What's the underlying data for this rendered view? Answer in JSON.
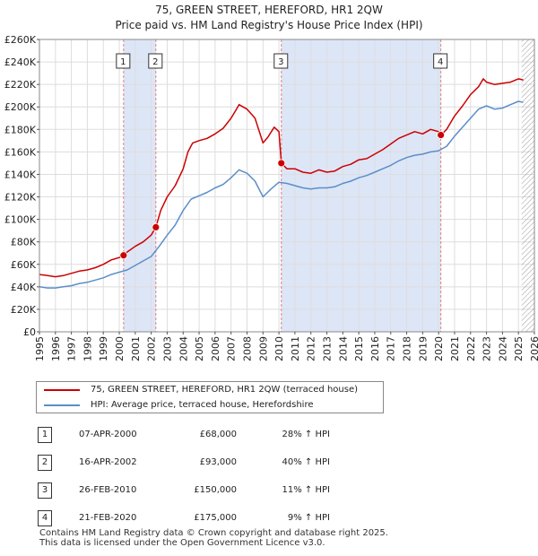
{
  "chart_data": {
    "type": "line",
    "title": "75, GREEN STREET, HEREFORD, HR1 2QW",
    "subtitle": "Price paid vs. HM Land Registry's House Price Index (HPI)",
    "xlim": [
      1995,
      2026
    ],
    "ylim": [
      0,
      260000
    ],
    "x_ticks": [
      1995,
      1996,
      1997,
      1998,
      1999,
      2000,
      2001,
      2002,
      2003,
      2004,
      2005,
      2006,
      2007,
      2008,
      2009,
      2010,
      2011,
      2012,
      2013,
      2014,
      2015,
      2016,
      2017,
      2018,
      2019,
      2020,
      2021,
      2022,
      2023,
      2024,
      2025,
      2026
    ],
    "y_ticks": [
      0,
      20000,
      40000,
      60000,
      80000,
      100000,
      120000,
      140000,
      160000,
      180000,
      200000,
      220000,
      240000,
      260000
    ],
    "y_tick_labels": [
      "£0",
      "£20K",
      "£40K",
      "£60K",
      "£80K",
      "£100K",
      "£120K",
      "£140K",
      "£160K",
      "£180K",
      "£200K",
      "£220K",
      "£240K",
      "£260K"
    ],
    "future_hatch_from": 2025.2,
    "series": [
      {
        "name": "75, GREEN STREET, HEREFORD, HR1 2QW (terraced house)",
        "color": "#cc0000",
        "points": [
          [
            1995.0,
            51000
          ],
          [
            1995.5,
            50000
          ],
          [
            1996.0,
            49000
          ],
          [
            1996.5,
            50000
          ],
          [
            1997.0,
            52000
          ],
          [
            1997.5,
            54000
          ],
          [
            1998.0,
            55000
          ],
          [
            1998.5,
            57000
          ],
          [
            1999.0,
            60000
          ],
          [
            1999.5,
            64000
          ],
          [
            2000.0,
            66000
          ],
          [
            2000.27,
            68000
          ],
          [
            2000.5,
            71000
          ],
          [
            2001.0,
            76000
          ],
          [
            2001.5,
            80000
          ],
          [
            2002.0,
            86000
          ],
          [
            2002.29,
            93000
          ],
          [
            2002.6,
            108000
          ],
          [
            2003.0,
            120000
          ],
          [
            2003.5,
            130000
          ],
          [
            2004.0,
            145000
          ],
          [
            2004.3,
            160000
          ],
          [
            2004.6,
            168000
          ],
          [
            2005.0,
            170000
          ],
          [
            2005.5,
            172000
          ],
          [
            2006.0,
            176000
          ],
          [
            2006.5,
            181000
          ],
          [
            2007.0,
            190000
          ],
          [
            2007.3,
            197000
          ],
          [
            2007.5,
            202000
          ],
          [
            2008.0,
            198000
          ],
          [
            2008.5,
            190000
          ],
          [
            2009.0,
            168000
          ],
          [
            2009.3,
            173000
          ],
          [
            2009.7,
            182000
          ],
          [
            2010.0,
            178000
          ],
          [
            2010.15,
            150000
          ],
          [
            2010.5,
            145000
          ],
          [
            2011.0,
            145000
          ],
          [
            2011.5,
            142000
          ],
          [
            2012.0,
            141000
          ],
          [
            2012.5,
            144000
          ],
          [
            2013.0,
            142000
          ],
          [
            2013.5,
            143000
          ],
          [
            2014.0,
            147000
          ],
          [
            2014.5,
            149000
          ],
          [
            2015.0,
            153000
          ],
          [
            2015.5,
            154000
          ],
          [
            2016.0,
            158000
          ],
          [
            2016.5,
            162000
          ],
          [
            2017.0,
            167000
          ],
          [
            2017.5,
            172000
          ],
          [
            2018.0,
            175000
          ],
          [
            2018.5,
            178000
          ],
          [
            2019.0,
            176000
          ],
          [
            2019.5,
            180000
          ],
          [
            2020.0,
            178000
          ],
          [
            2020.14,
            175000
          ],
          [
            2020.5,
            180000
          ],
          [
            2021.0,
            192000
          ],
          [
            2021.5,
            201000
          ],
          [
            2022.0,
            211000
          ],
          [
            2022.5,
            218000
          ],
          [
            2022.8,
            225000
          ],
          [
            2023.0,
            222000
          ],
          [
            2023.5,
            220000
          ],
          [
            2024.0,
            221000
          ],
          [
            2024.5,
            222000
          ],
          [
            2025.0,
            225000
          ],
          [
            2025.3,
            224000
          ]
        ]
      },
      {
        "name": "HPI: Average price, terraced house, Herefordshire",
        "color": "#5b8ec9",
        "points": [
          [
            1995.0,
            40000
          ],
          [
            1995.5,
            39000
          ],
          [
            1996.0,
            39000
          ],
          [
            1996.5,
            40000
          ],
          [
            1997.0,
            41000
          ],
          [
            1997.5,
            43000
          ],
          [
            1998.0,
            44000
          ],
          [
            1998.5,
            46000
          ],
          [
            1999.0,
            48000
          ],
          [
            1999.5,
            51000
          ],
          [
            2000.0,
            53000
          ],
          [
            2000.5,
            55000
          ],
          [
            2001.0,
            59000
          ],
          [
            2001.5,
            63000
          ],
          [
            2002.0,
            67000
          ],
          [
            2002.5,
            76000
          ],
          [
            2003.0,
            86000
          ],
          [
            2003.5,
            95000
          ],
          [
            2004.0,
            108000
          ],
          [
            2004.5,
            118000
          ],
          [
            2005.0,
            121000
          ],
          [
            2005.5,
            124000
          ],
          [
            2006.0,
            128000
          ],
          [
            2006.5,
            131000
          ],
          [
            2007.0,
            137000
          ],
          [
            2007.5,
            144000
          ],
          [
            2008.0,
            141000
          ],
          [
            2008.5,
            134000
          ],
          [
            2009.0,
            120000
          ],
          [
            2009.5,
            127000
          ],
          [
            2010.0,
            133000
          ],
          [
            2010.5,
            132000
          ],
          [
            2011.0,
            130000
          ],
          [
            2011.5,
            128000
          ],
          [
            2012.0,
            127000
          ],
          [
            2012.5,
            128000
          ],
          [
            2013.0,
            128000
          ],
          [
            2013.5,
            129000
          ],
          [
            2014.0,
            132000
          ],
          [
            2014.5,
            134000
          ],
          [
            2015.0,
            137000
          ],
          [
            2015.5,
            139000
          ],
          [
            2016.0,
            142000
          ],
          [
            2016.5,
            145000
          ],
          [
            2017.0,
            148000
          ],
          [
            2017.5,
            152000
          ],
          [
            2018.0,
            155000
          ],
          [
            2018.5,
            157000
          ],
          [
            2019.0,
            158000
          ],
          [
            2019.5,
            160000
          ],
          [
            2020.0,
            161000
          ],
          [
            2020.5,
            165000
          ],
          [
            2021.0,
            174000
          ],
          [
            2021.5,
            182000
          ],
          [
            2022.0,
            190000
          ],
          [
            2022.5,
            198000
          ],
          [
            2023.0,
            201000
          ],
          [
            2023.5,
            198000
          ],
          [
            2024.0,
            199000
          ],
          [
            2024.5,
            202000
          ],
          [
            2025.0,
            205000
          ],
          [
            2025.3,
            204000
          ]
        ]
      }
    ],
    "sales": [
      {
        "label": "1",
        "x": 2000.27,
        "price": 68000,
        "date": "07-APR-2000",
        "price_text": "£68,000",
        "hpi": "28% ↑ HPI"
      },
      {
        "label": "2",
        "x": 2002.29,
        "price": 93000,
        "date": "16-APR-2002",
        "price_text": "£93,000",
        "hpi": "40% ↑ HPI"
      },
      {
        "label": "3",
        "x": 2010.15,
        "price": 150000,
        "date": "26-FEB-2010",
        "price_text": "£150,000",
        "hpi": "11% ↑ HPI"
      },
      {
        "label": "4",
        "x": 2020.14,
        "price": 175000,
        "date": "21-FEB-2020",
        "price_text": "£175,000",
        "hpi": "9% ↑ HPI"
      }
    ],
    "shaded_ranges": [
      [
        2000.27,
        2002.29
      ],
      [
        2010.15,
        2020.14
      ]
    ]
  },
  "legend": {
    "entry1": "75, GREEN STREET, HEREFORD, HR1 2QW (terraced house)",
    "entry2": "HPI: Average price, terraced house, Herefordshire"
  },
  "footer": {
    "line1": "Contains HM Land Registry data © Crown copyright and database right 2025.",
    "line2": "This data is licensed under the Open Government Licence v3.0."
  },
  "colors": {
    "price": "#cc0000",
    "hpi": "#5b8ec9",
    "shade": "#dde6f7",
    "grid": "#dddddd"
  }
}
